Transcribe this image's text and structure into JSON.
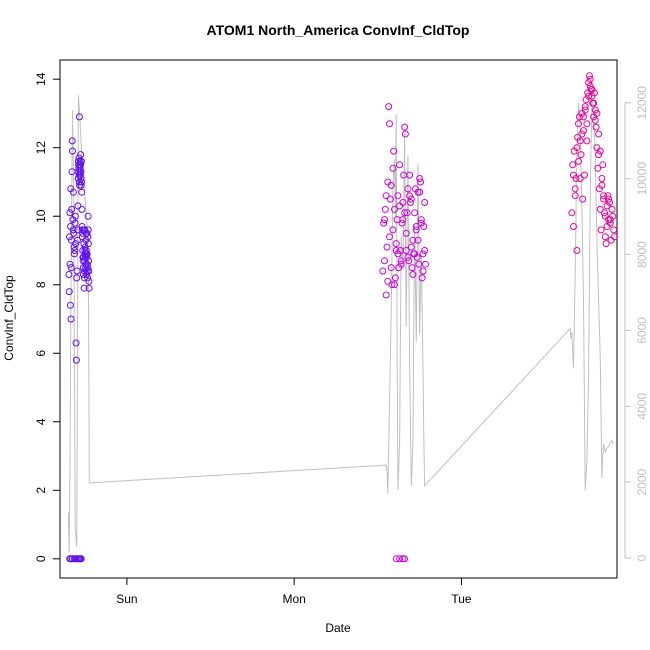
{
  "chart_data": {
    "type": "scatter",
    "title": "ATOM1 North_America ConvInf_CldTop",
    "xlabel": "Date",
    "ylabel": "ConvInf_CldTop",
    "x_ticks": [
      "Sun",
      "Mon",
      "Tue"
    ],
    "y_ticks": [
      "0",
      "2",
      "4",
      "6",
      "8",
      "10",
      "12",
      "14"
    ],
    "y2_ticks": [
      "0",
      "2000",
      "4000",
      "6000",
      "8000",
      "10000",
      "12000"
    ],
    "xlim_days": [
      -0.4,
      2.93
    ],
    "ylim": [
      -0.56,
      14.56
    ],
    "y2lim": [
      0,
      12600
    ],
    "grid": false,
    "legend": "none",
    "colors": {
      "early": "#6010f0",
      "middle": "#cc00dd",
      "late": "#ee0099",
      "secondary_line": "#c0c0c0",
      "axis": "#000000",
      "secondary_axis": "#c0c0c0"
    },
    "series_points": [
      {
        "name": "",
        "color": "#6010f0",
        "x": [
          -0.347,
          -0.345,
          -0.343,
          -0.341,
          -0.34,
          -0.338,
          -0.337,
          -0.336,
          -0.334,
          -0.333,
          -0.332,
          -0.33,
          -0.328,
          -0.327,
          -0.325,
          -0.323,
          -0.321,
          -0.32,
          -0.318,
          -0.316,
          -0.314,
          -0.312,
          -0.31,
          -0.308,
          -0.306,
          -0.304,
          -0.302,
          -0.3,
          -0.298,
          -0.296,
          -0.294,
          -0.293,
          -0.292,
          -0.291,
          -0.29,
          -0.289,
          -0.288,
          -0.287,
          -0.286,
          -0.285,
          -0.284,
          -0.283,
          -0.282,
          -0.281,
          -0.28,
          -0.279,
          -0.278,
          -0.277,
          -0.276,
          -0.275,
          -0.274,
          -0.273,
          -0.272,
          -0.271,
          -0.27,
          -0.269,
          -0.268,
          -0.267,
          -0.266,
          -0.265,
          -0.264,
          -0.263,
          -0.262,
          -0.261,
          -0.26,
          -0.259,
          -0.258,
          -0.257,
          -0.256,
          -0.255,
          -0.254,
          -0.253,
          -0.252,
          -0.251,
          -0.25,
          -0.249,
          -0.248,
          -0.247,
          -0.246,
          -0.245,
          -0.244,
          -0.243,
          -0.242,
          -0.241,
          -0.24,
          -0.239,
          -0.238,
          -0.237,
          -0.236,
          -0.235,
          -0.234,
          -0.233,
          -0.232,
          -0.231,
          -0.23,
          -0.229,
          -0.228,
          -0.227,
          -0.226,
          -0.342,
          -0.335,
          -0.326,
          -0.315,
          -0.305,
          -0.297,
          -0.29,
          -0.284,
          -0.279,
          -0.273
        ],
        "y": [
          8.3,
          7.8,
          9.4,
          10.1,
          8.6,
          7.4,
          9.7,
          10.8,
          7.0,
          8.5,
          9.3,
          10.2,
          11.3,
          12.2,
          11.9,
          9.9,
          9.6,
          10.7,
          9.5,
          9.1,
          8.9,
          9.0,
          9.8,
          10.0,
          9.2,
          6.3,
          5.8,
          8.2,
          8.4,
          9.3,
          9.6,
          10.3,
          11.3,
          11.1,
          11.6,
          11.5,
          11.4,
          11.7,
          11.2,
          11.0,
          12.9,
          10.9,
          11.5,
          11.3,
          11.6,
          11.4,
          11.2,
          11.5,
          11.8,
          11.3,
          11.1,
          10.9,
          11.6,
          11.0,
          10.7,
          10.2,
          9.7,
          9.6,
          9.4,
          9.5,
          9.0,
          8.8,
          8.7,
          8.5,
          8.3,
          8.8,
          9.2,
          9.6,
          7.9,
          8.4,
          8.2,
          8.7,
          9.6,
          9.0,
          9.1,
          8.9,
          8.8,
          8.5,
          8.6,
          9.3,
          9.5,
          9.0,
          8.9,
          8.3,
          8.8,
          9.5,
          8.9,
          8.4,
          8.6,
          8.2,
          8.5,
          9.4,
          10.0,
          9.6,
          9.2,
          8.7,
          8.4,
          8.1,
          7.9,
          0,
          0,
          0,
          0,
          0,
          0,
          0,
          0,
          0,
          0
        ]
      },
      {
        "name": "",
        "color": "#cc00dd",
        "x": [
          1.53,
          1.535,
          1.54,
          1.545,
          1.55,
          1.555,
          1.56,
          1.565,
          1.57,
          1.575,
          1.58,
          1.585,
          1.59,
          1.595,
          1.6,
          1.605,
          1.61,
          1.615,
          1.62,
          1.625,
          1.63,
          1.635,
          1.64,
          1.645,
          1.65,
          1.655,
          1.66,
          1.665,
          1.67,
          1.675,
          1.68,
          1.685,
          1.69,
          1.695,
          1.7,
          1.705,
          1.71,
          1.715,
          1.72,
          1.725,
          1.73,
          1.735,
          1.74,
          1.745,
          1.75,
          1.755,
          1.76,
          1.765,
          1.77,
          1.775,
          1.78,
          1.785,
          1.54,
          1.55,
          1.56,
          1.57,
          1.58,
          1.59,
          1.6,
          1.61,
          1.62,
          1.63,
          1.64,
          1.65,
          1.66,
          1.67,
          1.68,
          1.69,
          1.7,
          1.71,
          1.72,
          1.73,
          1.74,
          1.75,
          1.76,
          1.77,
          1.78,
          1.61,
          1.63,
          1.65,
          1.66
        ],
        "y": [
          8.4,
          9.8,
          8.7,
          10.2,
          7.7,
          9.1,
          11.0,
          13.2,
          12.7,
          10.5,
          8.5,
          8.0,
          9.6,
          11.9,
          10.2,
          8.2,
          9.0,
          9.9,
          8.9,
          8.5,
          10.3,
          9.0,
          8.6,
          9.8,
          10.4,
          11.2,
          12.6,
          12.4,
          9.0,
          10.1,
          8.8,
          8.7,
          10.6,
          10.4,
          9.1,
          8.5,
          8.3,
          8.9,
          10.1,
          10.8,
          9.7,
          8.8,
          9.3,
          8.6,
          10.7,
          11.0,
          9.9,
          8.2,
          8.4,
          9.7,
          10.4,
          8.6,
          9.9,
          10.6,
          8.1,
          9.4,
          10.9,
          11.4,
          8.0,
          9.2,
          10.6,
          11.5,
          8.7,
          9.9,
          10.1,
          9.5,
          10.8,
          11.2,
          10.5,
          9.3,
          8.9,
          9.6,
          10.7,
          11.1,
          9.8,
          8.9,
          9.0,
          0,
          0,
          0,
          0
        ]
      },
      {
        "name": "",
        "color": "#ee0099",
        "x": [
          2.66,
          2.665,
          2.67,
          2.675,
          2.68,
          2.685,
          2.69,
          2.695,
          2.7,
          2.705,
          2.71,
          2.715,
          2.72,
          2.725,
          2.73,
          2.735,
          2.74,
          2.745,
          2.75,
          2.755,
          2.76,
          2.765,
          2.77,
          2.775,
          2.78,
          2.785,
          2.79,
          2.795,
          2.8,
          2.805,
          2.81,
          2.815,
          2.82,
          2.825,
          2.83,
          2.835,
          2.84,
          2.845,
          2.85,
          2.855,
          2.86,
          2.865,
          2.87,
          2.875,
          2.88,
          2.885,
          2.89,
          2.895,
          2.9,
          2.905,
          2.91,
          2.915,
          2.67,
          2.68,
          2.69,
          2.7,
          2.71,
          2.72,
          2.73,
          2.74,
          2.75,
          2.76,
          2.77,
          2.78,
          2.79,
          2.8,
          2.81,
          2.82,
          2.83,
          2.84,
          2.85,
          2.86,
          2.87,
          2.88,
          2.89
        ],
        "y": [
          10.1,
          11.5,
          9.7,
          11.9,
          10.6,
          11.1,
          9.0,
          12.3,
          11.6,
          12.9,
          12.2,
          11.8,
          13.0,
          10.5,
          12.5,
          11.2,
          13.1,
          13.4,
          12.7,
          13.6,
          13.9,
          14.1,
          13.8,
          13.7,
          13.5,
          13.3,
          12.9,
          13.6,
          13.1,
          12.6,
          12.0,
          11.4,
          11.8,
          10.8,
          10.2,
          9.6,
          10.9,
          11.5,
          10.5,
          10.1,
          9.4,
          9.2,
          10.3,
          10.6,
          9.9,
          10.4,
          9.8,
          9.3,
          10.2,
          10.0,
          9.6,
          9.4,
          11.2,
          10.8,
          12.0,
          12.7,
          11.1,
          12.4,
          12.9,
          13.2,
          12.2,
          13.5,
          14.0,
          13.7,
          13.3,
          12.8,
          13.0,
          12.4,
          11.9,
          11.1,
          10.6,
          10.0,
          9.7,
          10.5,
          9.9
        ]
      }
    ],
    "series_line": {
      "name": "",
      "color": "#c0c0c0",
      "axis": "secondary",
      "x": [
        -0.35,
        -0.345,
        -0.34,
        -0.333,
        -0.325,
        -0.318,
        -0.31,
        -0.3,
        -0.29,
        -0.28,
        -0.272,
        -0.265,
        -0.255,
        -0.245,
        -0.24,
        -0.235,
        -0.23,
        -0.225,
        1.55,
        1.555,
        1.56,
        1.57,
        1.58,
        1.59,
        1.6,
        1.605,
        1.61,
        1.615,
        1.62,
        1.63,
        1.64,
        1.65,
        1.66,
        1.67,
        1.68,
        1.69,
        1.7,
        1.71,
        1.72,
        1.73,
        1.74,
        1.75,
        1.76,
        1.77,
        1.775,
        1.78,
        2.65,
        2.655,
        2.66,
        2.67,
        2.68,
        2.69,
        2.7,
        2.71,
        2.72,
        2.73,
        2.74,
        2.75,
        2.76,
        2.77,
        2.78,
        2.79,
        2.8,
        2.81,
        2.82,
        2.83,
        2.84,
        2.845,
        2.85,
        2.86,
        2.87,
        2.88,
        2.89,
        2.9,
        2.905
      ],
      "y": [
        1200,
        150,
        2500,
        8000,
        11800,
        9600,
        800,
        300,
        12200,
        11500,
        10800,
        10300,
        9700,
        9200,
        8900,
        8200,
        7600,
        1980,
        2450,
        2300,
        1700,
        4000,
        6500,
        9800,
        10500,
        9000,
        11700,
        6200,
        1800,
        3000,
        8500,
        7600,
        11200,
        6100,
        10600,
        5200,
        1900,
        3000,
        8800,
        5700,
        10400,
        5900,
        8000,
        5000,
        3200,
        1900,
        6050,
        5800,
        5950,
        5000,
        7500,
        10800,
        12000,
        11400,
        9300,
        6800,
        1800,
        2600,
        4800,
        9500,
        12200,
        11800,
        10600,
        8400,
        6800,
        5200,
        2100,
        2700,
        3000,
        2800,
        2900,
        2950,
        3050,
        3100,
        3000
      ]
    }
  }
}
